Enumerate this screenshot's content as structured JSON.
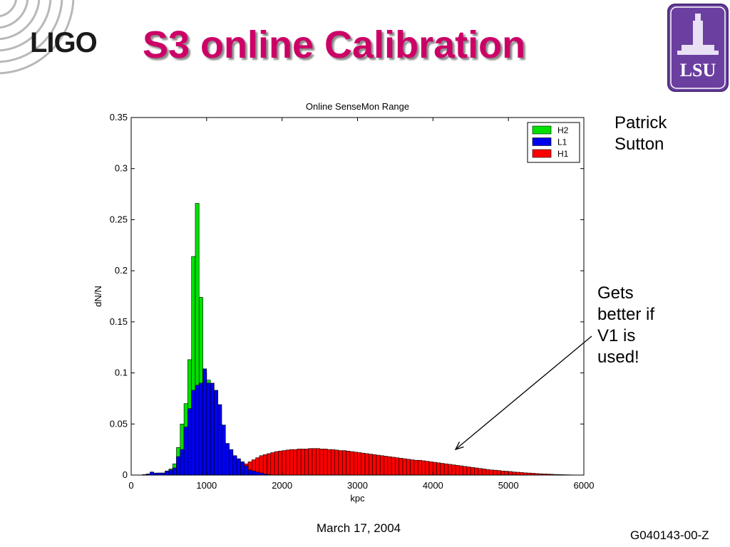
{
  "slide": {
    "logo_text": "LIGO",
    "title": "S3 online Calibration",
    "seal_text": "LSU",
    "author_lines": [
      "Patrick",
      "Sutton"
    ],
    "note_lines": [
      "Gets",
      "better if",
      "V1 is",
      "used!"
    ],
    "footer_date": "March 17, 2004",
    "footer_doc_id": "G040143-00-Z",
    "colors": {
      "title": "#cc0066",
      "seal": "#6b3fa0"
    },
    "icons": [
      "ligo-rings-icon",
      "lsu-tower-icon",
      "annotation-arrow-icon"
    ]
  },
  "chart_data": {
    "type": "bar",
    "title": "Online SenseMon Range",
    "xlabel": "kpc",
    "ylabel": "dN/N",
    "xlim": [
      0,
      6000
    ],
    "ylim": [
      0,
      0.35
    ],
    "xticks": [
      0,
      1000,
      2000,
      3000,
      4000,
      5000,
      6000
    ],
    "yticks": [
      0,
      0.05,
      0.1,
      0.15,
      0.2,
      0.25,
      0.3,
      0.35
    ],
    "ytick_labels": [
      "0",
      "0.05",
      "0.1",
      "0.15",
      "0.2",
      "0.25",
      "0.3",
      "0.35"
    ],
    "grid": false,
    "legend_position": "top-right",
    "series": [
      {
        "name": "H1",
        "color": "#ff0000",
        "bin_width": 50,
        "x": [
          125,
          175,
          225,
          275,
          325,
          375,
          425,
          475,
          525,
          575,
          625,
          675,
          725,
          775,
          825,
          875,
          925,
          975,
          1025,
          1075,
          1125,
          1175,
          1225,
          1275,
          1325,
          1375,
          1425,
          1475,
          1525,
          1575,
          1625,
          1675,
          1725,
          1775,
          1825,
          1875,
          1925,
          1975,
          2025,
          2075,
          2125,
          2175,
          2225,
          2275,
          2325,
          2375,
          2425,
          2475,
          2525,
          2575,
          2625,
          2675,
          2725,
          2775,
          2825,
          2875,
          2925,
          2975,
          3025,
          3075,
          3125,
          3175,
          3225,
          3275,
          3325,
          3375,
          3425,
          3475,
          3525,
          3575,
          3625,
          3675,
          3725,
          3775,
          3825,
          3875,
          3925,
          3975,
          4025,
          4075,
          4125,
          4175,
          4225,
          4275,
          4325,
          4375,
          4425,
          4475,
          4525,
          4575,
          4625,
          4675,
          4725,
          4775,
          4825,
          4875,
          4925,
          4975,
          5025,
          5075,
          5125,
          5175,
          5225,
          5275,
          5325,
          5375,
          5425,
          5475,
          5525,
          5575,
          5625,
          5675,
          5725,
          5775,
          5825
        ],
        "values": [
          0,
          0,
          0,
          0,
          0,
          0,
          0,
          0,
          0,
          0,
          0,
          0,
          0,
          0,
          0.0005,
          0.0008,
          0.001,
          0.0015,
          0.002,
          0.0025,
          0.003,
          0.0035,
          0.004,
          0.005,
          0.006,
          0.007,
          0.008,
          0.009,
          0.011,
          0.013,
          0.015,
          0.017,
          0.019,
          0.02,
          0.021,
          0.022,
          0.023,
          0.0235,
          0.024,
          0.0245,
          0.025,
          0.025,
          0.0255,
          0.0255,
          0.0255,
          0.026,
          0.026,
          0.026,
          0.0255,
          0.0255,
          0.025,
          0.025,
          0.0245,
          0.024,
          0.024,
          0.0235,
          0.023,
          0.0225,
          0.022,
          0.0215,
          0.021,
          0.0205,
          0.02,
          0.0195,
          0.019,
          0.0185,
          0.018,
          0.0175,
          0.017,
          0.0165,
          0.016,
          0.0155,
          0.015,
          0.0145,
          0.0145,
          0.014,
          0.0135,
          0.013,
          0.0125,
          0.012,
          0.0115,
          0.011,
          0.0105,
          0.01,
          0.0095,
          0.009,
          0.0085,
          0.008,
          0.0075,
          0.007,
          0.0065,
          0.006,
          0.0055,
          0.005,
          0.0048,
          0.0045,
          0.004,
          0.0038,
          0.0035,
          0.003,
          0.0028,
          0.0025,
          0.0022,
          0.002,
          0.0018,
          0.0015,
          0.0013,
          0.0011,
          0.001,
          0.0008,
          0.0006,
          0.0005,
          0.0004,
          0.0003,
          0.0002
        ]
      },
      {
        "name": "H2",
        "color": "#00e000",
        "bin_width": 50,
        "x": [
          125,
          175,
          225,
          275,
          325,
          375,
          425,
          475,
          525,
          575,
          625,
          675,
          725,
          775,
          825,
          875,
          925,
          975,
          1025,
          1075,
          1125,
          1175,
          1225,
          1275,
          1325,
          1375,
          1425,
          1475,
          1525,
          1575
        ],
        "values": [
          0,
          0.0005,
          0.001,
          0.001,
          0.0015,
          0.002,
          0.002,
          0.004,
          0.006,
          0.011,
          0.027,
          0.05,
          0.07,
          0.113,
          0.214,
          0.266,
          0.174,
          0.1,
          0.093,
          0.083,
          0.072,
          0.05,
          0.033,
          0.025,
          0.02,
          0.015,
          0.012,
          0.008,
          0.006,
          0.003
        ]
      },
      {
        "name": "L1",
        "color": "#0000ee",
        "bin_width": 50,
        "x": [
          125,
          175,
          225,
          275,
          325,
          375,
          425,
          475,
          525,
          575,
          625,
          675,
          725,
          775,
          825,
          875,
          925,
          975,
          1025,
          1075,
          1125,
          1175,
          1225,
          1275,
          1325,
          1375,
          1425,
          1475,
          1525,
          1575,
          1625,
          1675,
          1725,
          1775,
          1825
        ],
        "values": [
          0,
          0.0005,
          0.001,
          0.003,
          0.002,
          0.002,
          0.002,
          0.004,
          0.005,
          0.007,
          0.018,
          0.025,
          0.047,
          0.065,
          0.083,
          0.088,
          0.09,
          0.104,
          0.09,
          0.09,
          0.083,
          0.069,
          0.049,
          0.031,
          0.025,
          0.019,
          0.016,
          0.013,
          0.009,
          0.005,
          0.004,
          0.003,
          0.002,
          0.001,
          0.0005
        ]
      }
    ],
    "legend_entries": [
      "H2",
      "L1",
      "H1"
    ]
  }
}
